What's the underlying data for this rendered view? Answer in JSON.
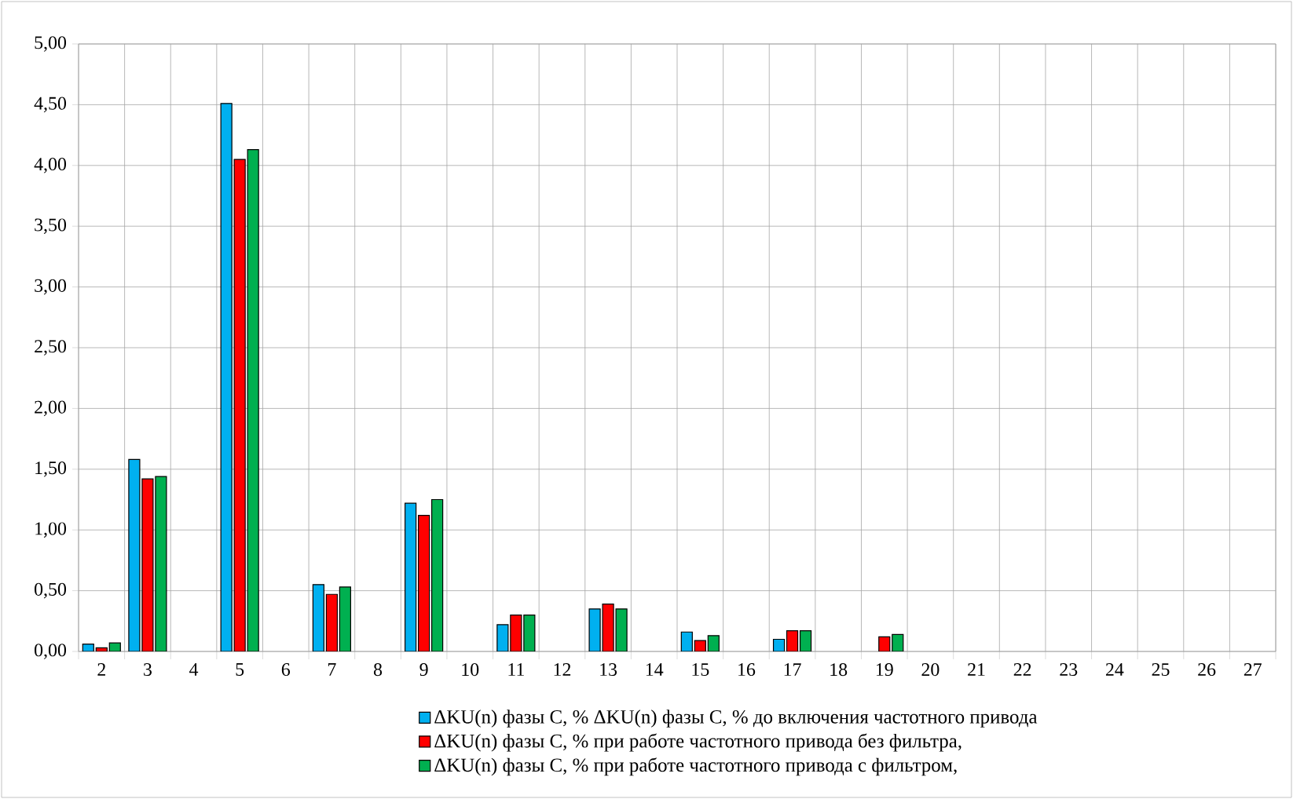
{
  "chart_data": {
    "type": "bar",
    "categories": [
      "2",
      "3",
      "4",
      "5",
      "6",
      "7",
      "8",
      "9",
      "10",
      "11",
      "12",
      "13",
      "14",
      "15",
      "16",
      "17",
      "18",
      "19",
      "20",
      "21",
      "22",
      "23",
      "24",
      "25",
      "26",
      "27"
    ],
    "series": [
      {
        "name": "ΔKU(n)  фазы С, % ΔKU(n)  фазы С, % до включения частотного привода",
        "color": "#00b0f0",
        "values": [
          0.06,
          1.58,
          null,
          4.51,
          null,
          0.55,
          null,
          1.22,
          null,
          0.22,
          null,
          0.35,
          null,
          0.16,
          null,
          0.1,
          null,
          null,
          null,
          null,
          null,
          null,
          null,
          null,
          null,
          null
        ]
      },
      {
        "name": "ΔKU(n)  фазы С, % при работе частотного привода без фильтра,",
        "color": "#ff0000",
        "values": [
          0.03,
          1.42,
          null,
          4.05,
          null,
          0.47,
          null,
          1.12,
          null,
          0.3,
          null,
          0.39,
          null,
          0.09,
          null,
          0.17,
          null,
          0.12,
          null,
          null,
          null,
          null,
          null,
          null,
          null,
          null
        ]
      },
      {
        "name": "ΔKU(n)  фазы С, % при работе частотного привода с фильтром,",
        "color": "#00b050",
        "values": [
          0.07,
          1.44,
          null,
          4.13,
          null,
          0.53,
          null,
          1.25,
          null,
          0.3,
          null,
          0.35,
          null,
          0.13,
          null,
          0.17,
          null,
          0.14,
          null,
          null,
          null,
          null,
          null,
          null,
          null,
          null
        ]
      }
    ],
    "ylim": [
      0,
      5
    ],
    "yticks": [
      {
        "value": 0,
        "label": "0,00"
      },
      {
        "value": 0.5,
        "label": "0,50"
      },
      {
        "value": 1,
        "label": "1,00"
      },
      {
        "value": 1.5,
        "label": "1,50"
      },
      {
        "value": 2,
        "label": "2,00"
      },
      {
        "value": 2.5,
        "label": "2,50"
      },
      {
        "value": 3,
        "label": "3,00"
      },
      {
        "value": 3.5,
        "label": "3,50"
      },
      {
        "value": 4,
        "label": "4,00"
      },
      {
        "value": 4.5,
        "label": "4,50"
      },
      {
        "value": 5,
        "label": "5,00"
      }
    ],
    "grid": true,
    "legend": "bottom"
  }
}
